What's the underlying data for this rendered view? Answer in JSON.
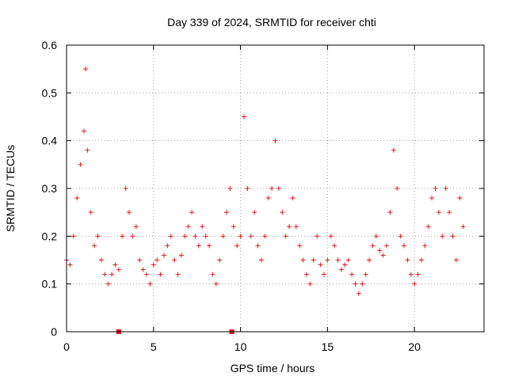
{
  "chart_data": {
    "type": "scatter",
    "title": "Day 339 of 2024, SRMTID for receiver chti",
    "xlabel": "GPS time / hours",
    "ylabel": "SRMTID / TECUs",
    "xlim": [
      0,
      24
    ],
    "ylim": [
      0,
      0.6
    ],
    "grid": true,
    "x_ticks": [
      "0",
      "5",
      "10",
      "15",
      "20"
    ],
    "y_ticks": [
      "0",
      "0.1",
      "0.2",
      "0.3",
      "0.4",
      "0.5",
      "0.6"
    ],
    "marker": "+",
    "color": "#e41a1c",
    "series": [
      {
        "name": "SRMTID",
        "x": [
          0.0,
          0.2,
          0.4,
          0.6,
          0.8,
          1.0,
          1.1,
          1.2,
          1.4,
          1.6,
          1.8,
          2.0,
          2.2,
          2.4,
          2.6,
          2.8,
          3.0,
          3.2,
          3.4,
          3.6,
          3.8,
          4.0,
          4.2,
          4.4,
          4.6,
          4.8,
          5.0,
          5.2,
          5.4,
          5.6,
          5.8,
          6.0,
          6.2,
          6.4,
          6.6,
          6.8,
          7.0,
          7.2,
          7.4,
          7.6,
          7.8,
          8.0,
          8.2,
          8.4,
          8.6,
          8.8,
          9.0,
          9.2,
          9.4,
          9.6,
          9.8,
          10.0,
          10.2,
          10.4,
          10.6,
          10.8,
          11.0,
          11.2,
          11.4,
          11.6,
          11.8,
          12.0,
          12.2,
          12.4,
          12.6,
          12.8,
          13.0,
          13.2,
          13.4,
          13.6,
          13.8,
          14.0,
          14.2,
          14.4,
          14.6,
          14.8,
          15.0,
          15.2,
          15.4,
          15.6,
          15.8,
          16.0,
          16.2,
          16.4,
          16.6,
          16.8,
          17.0,
          17.2,
          17.4,
          17.6,
          17.8,
          18.0,
          18.2,
          18.4,
          18.6,
          18.8,
          19.0,
          19.2,
          19.4,
          19.6,
          19.8,
          20.0,
          20.2,
          20.4,
          20.6,
          20.8,
          21.0,
          21.2,
          21.4,
          21.6,
          21.8,
          22.0,
          22.2,
          22.4,
          22.6,
          22.8
        ],
        "y": [
          0.15,
          0.14,
          0.2,
          0.28,
          0.35,
          0.42,
          0.55,
          0.38,
          0.25,
          0.18,
          0.2,
          0.15,
          0.12,
          0.1,
          0.12,
          0.14,
          0.13,
          0.2,
          0.3,
          0.25,
          0.2,
          0.22,
          0.15,
          0.13,
          0.12,
          0.1,
          0.14,
          0.15,
          0.12,
          0.16,
          0.18,
          0.2,
          0.15,
          0.12,
          0.16,
          0.2,
          0.22,
          0.25,
          0.2,
          0.18,
          0.22,
          0.2,
          0.18,
          0.12,
          0.1,
          0.15,
          0.2,
          0.25,
          0.3,
          0.22,
          0.18,
          0.2,
          0.45,
          0.3,
          0.2,
          0.25,
          0.18,
          0.15,
          0.2,
          0.28,
          0.3,
          0.4,
          0.3,
          0.25,
          0.2,
          0.22,
          0.28,
          0.22,
          0.18,
          0.15,
          0.12,
          0.1,
          0.15,
          0.2,
          0.14,
          0.12,
          0.15,
          0.2,
          0.18,
          0.15,
          0.13,
          0.14,
          0.15,
          0.12,
          0.1,
          0.08,
          0.1,
          0.12,
          0.15,
          0.18,
          0.2,
          0.17,
          0.16,
          0.18,
          0.25,
          0.38,
          0.3,
          0.2,
          0.18,
          0.15,
          0.12,
          0.1,
          0.12,
          0.15,
          0.18,
          0.22,
          0.28,
          0.3,
          0.25,
          0.2,
          0.3,
          0.25,
          0.2,
          0.15,
          0.28,
          0.22
        ]
      }
    ],
    "bad_data_x": [
      3.0,
      9.5
    ]
  }
}
